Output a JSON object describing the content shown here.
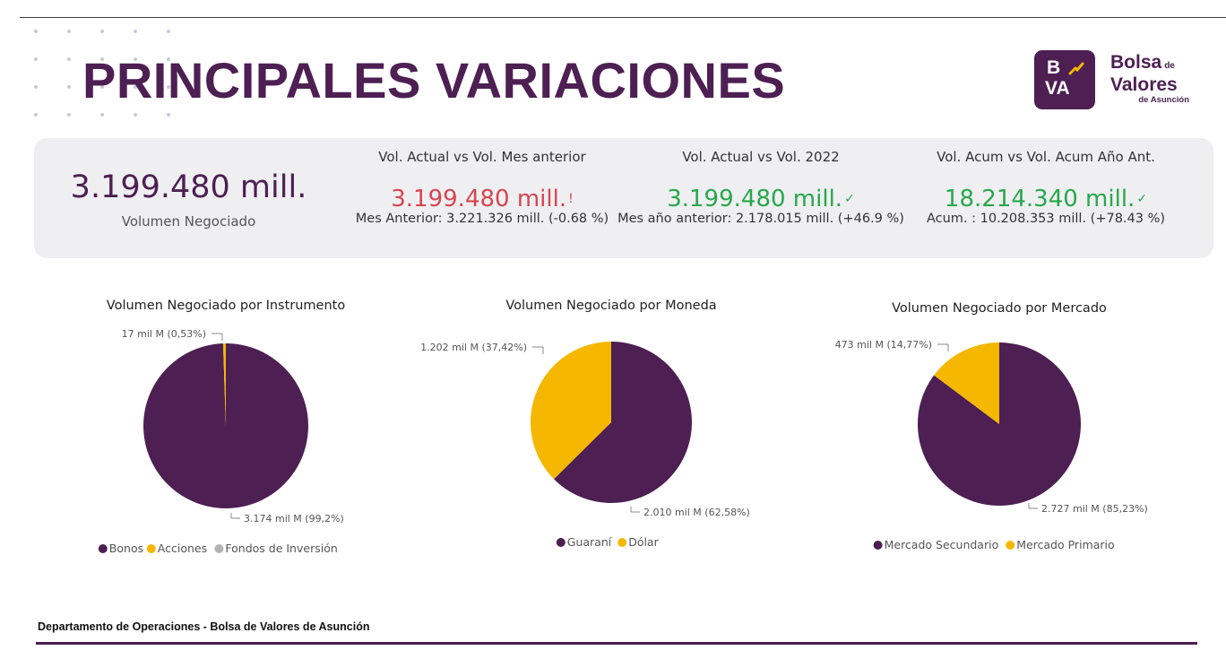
{
  "header": {
    "title": "PRINCIPALES VARIACIONES"
  },
  "logo": {
    "mark_letters": [
      "B",
      "VA"
    ],
    "line1": "Bolsa",
    "line1_small": "de",
    "line2": "Valores",
    "line3": "de Asunción"
  },
  "kpis": {
    "main": {
      "value": "3.199.480 mill.",
      "label": "Volumen Negociado"
    },
    "cards": [
      {
        "header": "Vol. Actual vs Vol. Mes anterior",
        "value": "3.199.480 mill.",
        "mark": "!",
        "color": "#d64550",
        "sub": "Mes Anterior: 3.221.326 mill. (-0.68 %)"
      },
      {
        "header": "Vol. Actual vs Vol. 2022",
        "value": "3.199.480 mill.",
        "mark": "✓",
        "color": "#27a84a",
        "sub": "Mes año anterior: 2.178.015 mill. (+46.9 %)"
      },
      {
        "header": "Vol. Acum vs Vol. Acum Año Ant.",
        "value": "18.214.340 mill.",
        "mark": "✓",
        "color": "#27a84a",
        "sub": "Acum. : 10.208.353 mill. (+78.43 %)"
      }
    ]
  },
  "colors": {
    "purple": "#4d1f53",
    "gold": "#f5b700",
    "gray": "#b3b3b3"
  },
  "chart_data": [
    {
      "type": "pie",
      "title": "Volumen Negociado por Instrumento",
      "slices": [
        {
          "name": "Bonos",
          "value": 3174,
          "percent": 99.2,
          "label": "3.174 mil M (99,2%)",
          "color": "#4d1f53"
        },
        {
          "name": "Acciones",
          "value": 17,
          "percent": 0.53,
          "label": "17 mil M (0,53%)",
          "color": "#f5b700"
        },
        {
          "name": "Fondos de Inversión",
          "value": 0,
          "percent": 0,
          "label": "",
          "color": "#b3b3b3"
        }
      ],
      "legend": [
        "Bonos",
        "Acciones",
        "Fondos de Inversión"
      ],
      "legend_position": "bottom"
    },
    {
      "type": "pie",
      "title": "Volumen Negociado por Moneda",
      "slices": [
        {
          "name": "Guaraní",
          "value": 2010,
          "percent": 62.58,
          "label": "2.010 mil M (62,58%)",
          "color": "#4d1f53"
        },
        {
          "name": "Dólar",
          "value": 1202,
          "percent": 37.42,
          "label": "1.202 mil M (37,42%)",
          "color": "#f5b700"
        }
      ],
      "legend": [
        "Guaraní",
        "Dólar"
      ],
      "legend_position": "bottom"
    },
    {
      "type": "pie",
      "title": "Volumen Negociado por Mercado",
      "slices": [
        {
          "name": "Mercado Secundario",
          "value": 2727,
          "percent": 85.23,
          "label": "2.727 mil M (85,23%)",
          "color": "#4d1f53"
        },
        {
          "name": "Mercado Primario",
          "value": 473,
          "percent": 14.77,
          "label": "473 mil M (14,77%)",
          "color": "#f5b700"
        }
      ],
      "legend": [
        "Mercado Secundario",
        "Mercado Primario"
      ],
      "legend_position": "bottom"
    }
  ],
  "footer": {
    "text": "Departamento de Operaciones - Bolsa de Valores de Asunción"
  }
}
